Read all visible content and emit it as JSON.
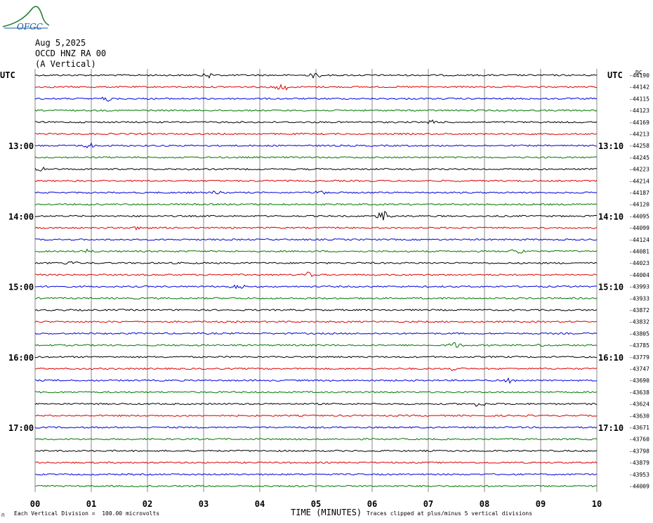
{
  "header": {
    "date": "Aug 5,2025",
    "station": "OCCD HNZ RA 00",
    "component": "(A Vertical)"
  },
  "logo_text": "OFGC",
  "left_utc_label": "UTC",
  "right_utc_label": "UTC",
  "dc_label": "DC",
  "footer": {
    "mark": "∩",
    "division_note": "Each Vertical Division =  100.00 microvolts",
    "clip_note": "Traces clipped at plus/minus 5 vertical divisions"
  },
  "colors": {
    "trace_cycle": [
      "#000000",
      "#dd0000",
      "#0000dd",
      "#007700"
    ],
    "grid": "#888888"
  },
  "chart_data": {
    "type": "line",
    "title": "",
    "xlabel": "TIME (MINUTES)",
    "ylabel": "",
    "xlim": [
      0,
      10
    ],
    "x_ticks": [
      "00",
      "01",
      "02",
      "03",
      "04",
      "05",
      "06",
      "07",
      "08",
      "09",
      "10"
    ],
    "left_time_labels": [
      {
        "row": 6,
        "text": "13:00"
      },
      {
        "row": 12,
        "text": "14:00"
      },
      {
        "row": 18,
        "text": "15:00"
      },
      {
        "row": 24,
        "text": "16:00"
      },
      {
        "row": 30,
        "text": "17:00"
      }
    ],
    "right_time_labels": [
      {
        "row": 6,
        "text": "13:10"
      },
      {
        "row": 12,
        "text": "14:10"
      },
      {
        "row": 18,
        "text": "15:10"
      },
      {
        "row": 24,
        "text": "16:10"
      },
      {
        "row": 30,
        "text": "17:10"
      }
    ],
    "dc_offsets": [
      "-44190",
      "-44142",
      "-44115",
      "-44123",
      "-44169",
      "-44213",
      "-44258",
      "-44245",
      "-44223",
      "-44214",
      "-44187",
      "-44120",
      "-44095",
      "-44099",
      "-44124",
      "-44081",
      "-44023",
      "-44004",
      "-43993",
      "-43933",
      "-43872",
      "-43832",
      "-43805",
      "-43785",
      "-43779",
      "-43747",
      "-43690",
      "-43638",
      "-43624",
      "-43630",
      "-43671",
      "-43760",
      "-43798",
      "-43879",
      "-43953",
      "-44009"
    ],
    "events": [
      {
        "row": 0,
        "x": 3.1,
        "amp": 4
      },
      {
        "row": 0,
        "x": 5.0,
        "amp": 4
      },
      {
        "row": 1,
        "x": 4.4,
        "amp": 7
      },
      {
        "row": 2,
        "x": 1.3,
        "amp": 3
      },
      {
        "row": 4,
        "x": 7.1,
        "amp": 3
      },
      {
        "row": 6,
        "x": 1.0,
        "amp": 5
      },
      {
        "row": 8,
        "x": 0.1,
        "amp": 3
      },
      {
        "row": 10,
        "x": 3.2,
        "amp": 3
      },
      {
        "row": 10,
        "x": 5.1,
        "amp": 3
      },
      {
        "row": 12,
        "x": 6.2,
        "amp": 9
      },
      {
        "row": 13,
        "x": 1.85,
        "amp": 4
      },
      {
        "row": 15,
        "x": 0.95,
        "amp": 3
      },
      {
        "row": 15,
        "x": 8.6,
        "amp": 5
      },
      {
        "row": 16,
        "x": 0.65,
        "amp": 3
      },
      {
        "row": 17,
        "x": 4.85,
        "amp": 4
      },
      {
        "row": 18,
        "x": 3.6,
        "amp": 6
      },
      {
        "row": 23,
        "x": 7.5,
        "amp": 6
      },
      {
        "row": 23,
        "x": 9.0,
        "amp": 3
      },
      {
        "row": 25,
        "x": 7.45,
        "amp": 3
      },
      {
        "row": 26,
        "x": 8.45,
        "amp": 3
      },
      {
        "row": 28,
        "x": 7.9,
        "amp": 4
      }
    ]
  }
}
